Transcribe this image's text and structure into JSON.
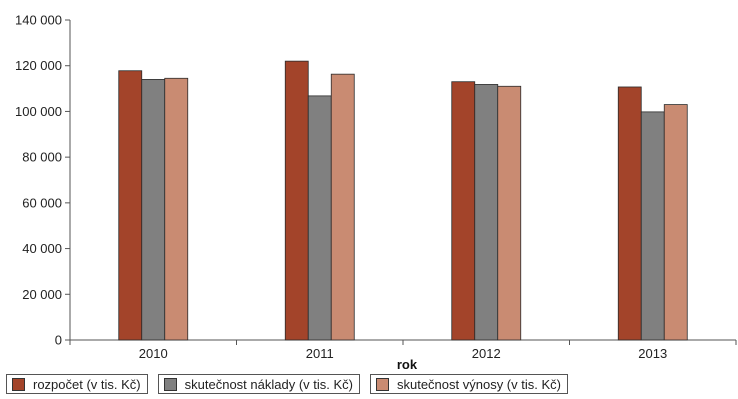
{
  "chart_data": {
    "type": "bar",
    "categories": [
      "2010",
      "2011",
      "2012",
      "2013"
    ],
    "series": [
      {
        "name": "rozpočet (v tis. Kč)",
        "color": "#a3442a",
        "values": [
          117800,
          122000,
          113000,
          110700
        ]
      },
      {
        "name": "skutečnost náklady (v tis. Kč)",
        "color": "#808080",
        "values": [
          114000,
          106800,
          111800,
          99800
        ]
      },
      {
        "name": "skutečnost výnosy (v tis. Kč)",
        "color": "#c98b72",
        "values": [
          114500,
          116300,
          111000,
          103000
        ]
      }
    ],
    "xlabel": "rok",
    "ylabel": "",
    "ylim": [
      0,
      140000
    ],
    "yticks": [
      "0",
      "20 000",
      "40 000",
      "60 000",
      "80 000",
      "100 000",
      "120 000",
      "140 000"
    ],
    "grid": false,
    "legend_position": "bottom"
  }
}
